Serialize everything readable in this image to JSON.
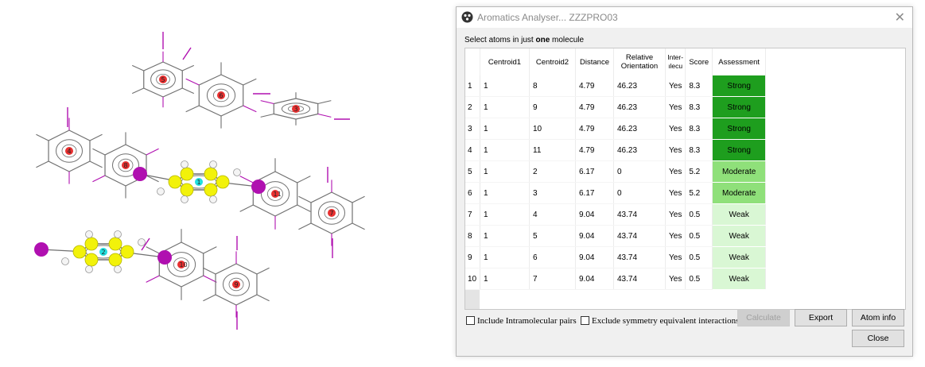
{
  "window": {
    "title": "Aromatics Analyser... ZZZPRO03"
  },
  "instruction": {
    "prefix": "Select atoms in just ",
    "bold": "one",
    "suffix": " molecule"
  },
  "table": {
    "columns": [
      "",
      "Centroid1",
      "Centroid2",
      "Distance",
      "Relative Orientation",
      "Inter-molecular",
      "Score",
      "Assessment"
    ],
    "column_display": {
      "inter": [
        "Inter-",
        "ılecu"
      ]
    },
    "rows": [
      {
        "n": "1",
        "c1": "1",
        "c2": "8",
        "dist": "4.79",
        "orient": "46.23",
        "inter": "Yes",
        "score": "8.3",
        "assessment": "Strong"
      },
      {
        "n": "2",
        "c1": "1",
        "c2": "9",
        "dist": "4.79",
        "orient": "46.23",
        "inter": "Yes",
        "score": "8.3",
        "assessment": "Strong"
      },
      {
        "n": "3",
        "c1": "1",
        "c2": "10",
        "dist": "4.79",
        "orient": "46.23",
        "inter": "Yes",
        "score": "8.3",
        "assessment": "Strong"
      },
      {
        "n": "4",
        "c1": "1",
        "c2": "11",
        "dist": "4.79",
        "orient": "46.23",
        "inter": "Yes",
        "score": "8.3",
        "assessment": "Strong"
      },
      {
        "n": "5",
        "c1": "1",
        "c2": "2",
        "dist": "6.17",
        "orient": "0",
        "inter": "Yes",
        "score": "5.2",
        "assessment": "Moderate"
      },
      {
        "n": "6",
        "c1": "1",
        "c2": "3",
        "dist": "6.17",
        "orient": "0",
        "inter": "Yes",
        "score": "5.2",
        "assessment": "Moderate"
      },
      {
        "n": "7",
        "c1": "1",
        "c2": "4",
        "dist": "9.04",
        "orient": "43.74",
        "inter": "Yes",
        "score": "0.5",
        "assessment": "Weak"
      },
      {
        "n": "8",
        "c1": "1",
        "c2": "5",
        "dist": "9.04",
        "orient": "43.74",
        "inter": "Yes",
        "score": "0.5",
        "assessment": "Weak"
      },
      {
        "n": "9",
        "c1": "1",
        "c2": "6",
        "dist": "9.04",
        "orient": "43.74",
        "inter": "Yes",
        "score": "0.5",
        "assessment": "Weak"
      },
      {
        "n": "10",
        "c1": "1",
        "c2": "7",
        "dist": "9.04",
        "orient": "43.74",
        "inter": "Yes",
        "score": "0.5",
        "assessment": "Weak"
      }
    ]
  },
  "assessment_colors": {
    "Strong": "#1e9e1e",
    "Moderate": "#8fe07a",
    "Weak": "#d9f7d4"
  },
  "options": {
    "include_intramolecular": "Include Intramolecular pairs",
    "exclude_symmetry": "Exclude symmetry equivalent interactions"
  },
  "buttons": {
    "calculate": "Calculate",
    "export": "Export",
    "atom_info": "Atom info",
    "close": "Close"
  },
  "viewer": {
    "centroid_labels": [
      "1",
      "2",
      "3",
      "4",
      "5",
      "6",
      "7",
      "8",
      "9",
      "10",
      "11"
    ],
    "colors": {
      "bond": "#707070",
      "iodine": "#b010b0",
      "yellow_atom": "#f2f20a",
      "centroid": "#e83030",
      "highlight": "#21e0e0"
    }
  }
}
